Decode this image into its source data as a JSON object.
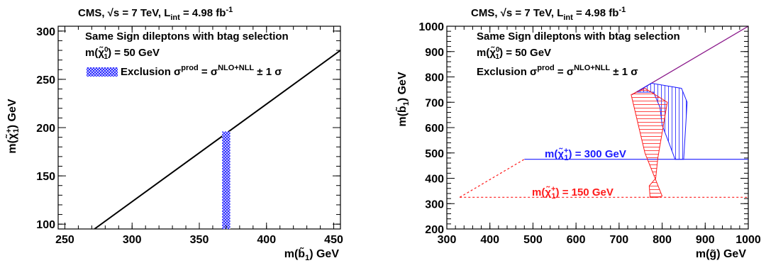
{
  "chart_data": [
    {
      "type": "line",
      "title": "CMS, √s = 7 TeV, L_int = 4.98 fb⁻¹",
      "xlabel": "m(b̃₁) GeV",
      "ylabel": "m(χ̃⁺₁) GeV",
      "xlim": [
        245,
        455
      ],
      "ylim": [
        95,
        305
      ],
      "xticks": [
        "250",
        "300",
        "350",
        "400",
        "450"
      ],
      "yticks": [
        "100",
        "150",
        "200",
        "250",
        "300"
      ],
      "legend": {
        "line1": "Same Sign dileptons with btag selection",
        "line2": "m(χ̃⁰₁) = 50 GeV",
        "line3": "Exclusion σ^prod = σ^NLO+NLL ± 1 σ"
      },
      "series": [
        {
          "kind": "boundary-line",
          "x": [
            272,
            455
          ],
          "y": [
            95,
            280
          ],
          "color": "#000000"
        },
        {
          "kind": "exclusion-band",
          "x": [
            367,
            373
          ],
          "y": [
            95,
            196
          ],
          "color": "#1a1aff"
        }
      ]
    },
    {
      "type": "line",
      "title": "CMS, √s = 7 TeV, L_int = 4.98 fb⁻¹",
      "xlabel": "m(g̃) GeV",
      "ylabel": "m(b̃₁) GeV",
      "xlim": [
        300,
        1000
      ],
      "ylim": [
        200,
        1000
      ],
      "xticks": [
        "300",
        "400",
        "500",
        "600",
        "700",
        "800",
        "900",
        "1000"
      ],
      "yticks": [
        "200",
        "300",
        "400",
        "500",
        "600",
        "700",
        "800",
        "900",
        "1000"
      ],
      "legend": {
        "line1": "Same Sign dileptons with btag selection",
        "line2": "m(χ̃⁰₁) = 50 GeV",
        "line3": "Exclusion σ^prod = σ^NLO+NLL ± 1 σ"
      },
      "annotations": [
        {
          "text": "m(χ̃⁺₁) = 300 GeV",
          "color": "#1a1aff"
        },
        {
          "text": "m(χ̃⁺₁) = 150 GeV",
          "color": "#ff1a1a"
        }
      ],
      "series": [
        {
          "kind": "diagonal",
          "x": [
            730,
            1000
          ],
          "y": [
            730,
            1000
          ],
          "color": "#8b1a8b"
        },
        {
          "kind": "threshold-300",
          "x": [
            480,
            1000
          ],
          "y": [
            475,
            475
          ],
          "color": "#1a1aff"
        },
        {
          "kind": "threshold-300-dashed",
          "x": [
            330,
            480
          ],
          "y": [
            325,
            475
          ],
          "color": "#ff1a1a"
        },
        {
          "kind": "threshold-150-dashed",
          "x": [
            330,
            1000
          ],
          "y": [
            325,
            325
          ],
          "color": "#ff1a1a"
        },
        {
          "kind": "exclusion-300",
          "color": "#1a1aff",
          "x": [
            740,
            775,
            845,
            858,
            850,
            830,
            818,
            800,
            795,
            780,
            740
          ],
          "y": [
            740,
            775,
            755,
            700,
            475,
            475,
            530,
            610,
            680,
            740,
            740
          ]
        },
        {
          "kind": "exclusion-150",
          "color": "#ff1a1a",
          "x": [
            728,
            760,
            812,
            802,
            790,
            785,
            770,
            772,
            790,
            800,
            760,
            728
          ],
          "y": [
            730,
            755,
            700,
            600,
            480,
            400,
            370,
            325,
            325,
            330,
            500,
            730
          ]
        }
      ]
    }
  ]
}
